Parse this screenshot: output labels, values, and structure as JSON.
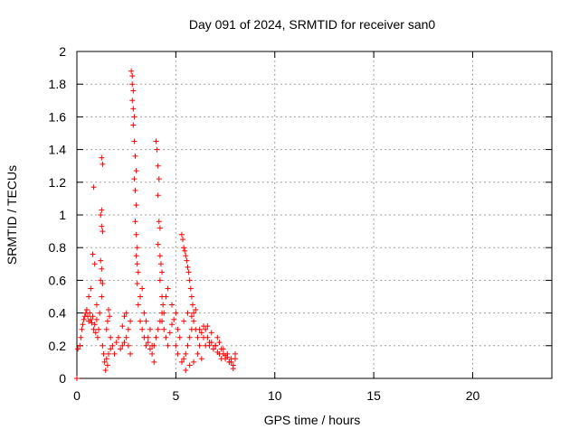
{
  "chart_data": {
    "type": "scatter",
    "title": "Day 091 of 2024, SRMTID for receiver san0",
    "xlabel": "GPS time / hours",
    "ylabel": "SRMTID / TECUs",
    "xlim": [
      0,
      24
    ],
    "ylim": [
      0,
      2
    ],
    "xticks": [
      0,
      5,
      10,
      15,
      20
    ],
    "xtick_labels": [
      "0",
      "5",
      "10",
      "15",
      "20"
    ],
    "yticks": [
      0,
      0.2,
      0.4,
      0.6,
      0.8,
      1,
      1.2,
      1.4,
      1.6,
      1.8,
      2
    ],
    "ytick_labels": [
      "0",
      "0.2",
      "0.4",
      "0.6",
      "0.8",
      "1",
      "1.2",
      "1.4",
      "1.6",
      "1.8",
      "2"
    ],
    "grid": true,
    "marker": "+",
    "series": [
      {
        "name": "san0",
        "color": "#ff0000",
        "x": [
          0.0,
          0.05,
          0.15,
          0.2,
          0.25,
          0.3,
          0.35,
          0.4,
          0.45,
          0.5,
          0.55,
          0.6,
          0.65,
          0.7,
          0.75,
          0.8,
          0.85,
          0.9,
          0.95,
          1.0,
          0.6,
          0.7,
          0.8,
          0.85,
          0.9,
          1.0,
          1.05,
          1.1,
          1.15,
          1.2,
          1.25,
          1.3,
          1.35,
          1.4,
          1.45,
          1.5,
          1.55,
          1.6,
          1.65,
          1.7,
          1.2,
          1.25,
          1.25,
          1.3,
          1.25,
          1.3,
          1.2,
          1.3,
          1.25,
          1.5,
          1.55,
          1.6,
          1.7,
          1.8,
          1.9,
          2.0,
          2.1,
          2.2,
          2.3,
          2.4,
          2.5,
          2.6,
          2.7,
          2.3,
          2.4,
          2.5,
          2.6,
          2.7,
          2.75,
          2.8,
          2.8,
          2.85,
          2.8,
          2.85,
          2.9,
          2.85,
          2.9,
          2.95,
          3.0,
          2.9,
          2.95,
          3.0,
          2.95,
          3.0,
          3.05,
          3.0,
          3.05,
          3.1,
          3.05,
          3.1,
          3.2,
          3.3,
          3.4,
          3.5,
          3.6,
          3.7,
          3.8,
          3.9,
          4.0,
          4.1,
          4.2,
          4.3,
          3.2,
          3.3,
          3.4,
          3.5,
          3.6,
          3.7,
          3.8,
          3.9,
          4.0,
          4.05,
          4.1,
          4.15,
          4.1,
          4.15,
          4.2,
          4.1,
          4.2,
          4.25,
          4.3,
          4.2,
          4.3,
          4.35,
          4.4,
          4.3,
          4.4,
          4.5,
          4.6,
          4.7,
          4.8,
          4.9,
          5.0,
          5.1,
          5.2,
          4.5,
          4.6,
          4.8,
          5.0,
          5.1,
          5.3,
          5.35,
          5.4,
          5.45,
          5.5,
          5.55,
          5.6,
          5.65,
          5.7,
          5.75,
          5.8,
          5.85,
          5.9,
          5.3,
          5.4,
          5.5,
          5.6,
          5.7,
          5.8,
          5.9,
          6.0,
          6.1,
          6.2,
          6.3,
          6.4,
          6.5,
          6.6,
          6.7,
          6.8,
          6.9,
          7.0,
          7.1,
          7.2,
          7.3,
          7.4,
          7.5,
          7.6,
          7.7,
          7.8,
          7.9,
          8.0,
          5.4,
          5.6,
          5.8,
          6.0,
          6.2,
          6.4,
          6.6,
          6.8,
          7.0,
          7.2,
          7.4,
          7.6,
          7.8,
          8.0,
          5.5,
          5.7,
          5.9,
          6.1,
          6.3,
          6.5,
          6.7,
          6.9,
          7.1,
          7.3,
          7.5,
          7.7,
          7.9
        ],
        "y": [
          0.0,
          0.18,
          0.2,
          0.25,
          0.3,
          0.33,
          0.36,
          0.38,
          0.4,
          0.42,
          0.38,
          0.35,
          0.4,
          0.36,
          0.34,
          0.38,
          0.3,
          0.33,
          0.28,
          0.36,
          0.5,
          0.55,
          0.76,
          1.17,
          0.7,
          0.45,
          0.25,
          0.3,
          0.4,
          0.6,
          0.67,
          0.2,
          0.15,
          0.1,
          0.05,
          0.3,
          0.35,
          0.42,
          0.38,
          0.25,
          1.0,
          1.03,
          0.93,
          1.31,
          1.35,
          0.9,
          0.72,
          0.58,
          0.5,
          0.12,
          0.08,
          0.15,
          0.18,
          0.2,
          0.15,
          0.22,
          0.25,
          0.18,
          0.2,
          0.22,
          0.25,
          0.2,
          0.15,
          0.32,
          0.38,
          0.4,
          0.3,
          0.35,
          1.88,
          1.85,
          1.8,
          1.76,
          1.7,
          1.65,
          1.6,
          1.55,
          1.45,
          1.36,
          1.27,
          1.22,
          1.15,
          1.06,
          0.96,
          0.88,
          0.8,
          0.75,
          0.7,
          0.65,
          0.58,
          0.45,
          0.35,
          0.3,
          0.25,
          0.2,
          0.22,
          0.18,
          0.15,
          0.2,
          0.25,
          0.3,
          0.35,
          0.4,
          0.5,
          0.55,
          0.4,
          0.35,
          0.25,
          0.3,
          0.2,
          0.1,
          1.45,
          1.4,
          1.3,
          1.22,
          1.12,
          0.96,
          0.92,
          0.82,
          0.75,
          0.7,
          0.65,
          0.6,
          0.5,
          0.45,
          0.4,
          0.35,
          0.3,
          0.25,
          0.2,
          0.28,
          0.33,
          0.36,
          0.4,
          0.3,
          0.25,
          0.5,
          0.55,
          0.45,
          0.2,
          0.15,
          0.88,
          0.85,
          0.8,
          0.78,
          0.75,
          0.72,
          0.68,
          0.65,
          0.6,
          0.55,
          0.5,
          0.45,
          0.4,
          0.1,
          0.12,
          0.15,
          0.2,
          0.25,
          0.3,
          0.35,
          0.3,
          0.25,
          0.2,
          0.28,
          0.32,
          0.3,
          0.25,
          0.2,
          0.22,
          0.18,
          0.2,
          0.25,
          0.22,
          0.18,
          0.15,
          0.12,
          0.15,
          0.1,
          0.12,
          0.08,
          0.12,
          0.35,
          0.4,
          0.38,
          0.42,
          0.3,
          0.25,
          0.32,
          0.28,
          0.2,
          0.15,
          0.18,
          0.13,
          0.1,
          0.15,
          0.05,
          0.08,
          0.1,
          0.15,
          0.12,
          0.2,
          0.22,
          0.18,
          0.16,
          0.12,
          0.14,
          0.1,
          0.06
        ]
      }
    ]
  }
}
